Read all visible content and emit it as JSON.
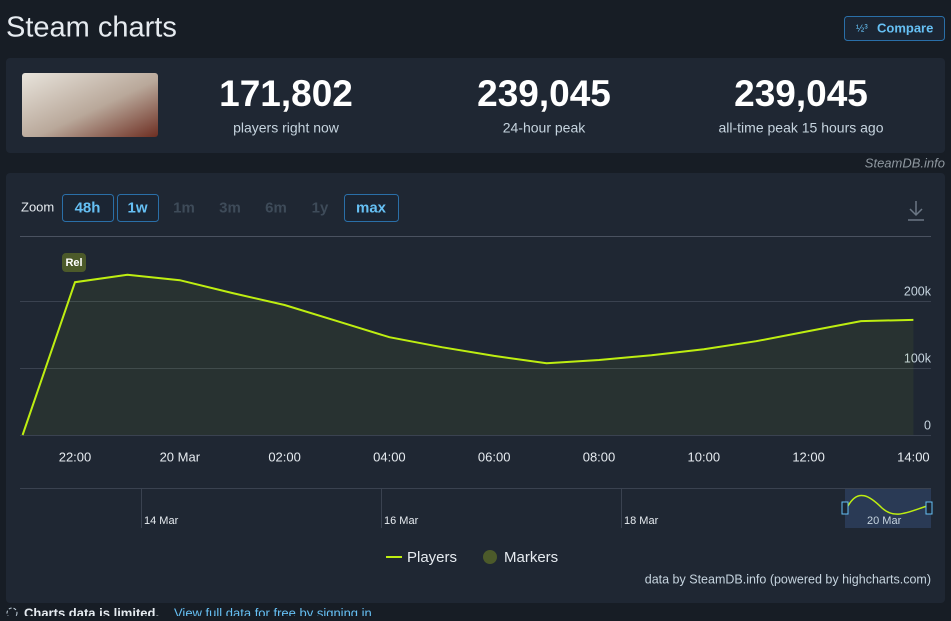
{
  "header": {
    "title": "Steam charts",
    "compare": "Compare"
  },
  "stats": [
    {
      "value": "171,802",
      "label": "players right now"
    },
    {
      "value": "239,045",
      "label": "24-hour peak"
    },
    {
      "value": "239,045",
      "label": "all-time peak 15 hours ago"
    }
  ],
  "source": "SteamDB.info",
  "zoom": {
    "label": "Zoom",
    "options": [
      "48h",
      "1w",
      "1m",
      "3m",
      "6m",
      "1y",
      "max"
    ]
  },
  "chart_data": {
    "type": "line",
    "categories": [
      null,
      "22:00",
      null,
      "20 Mar",
      null,
      "02:00",
      null,
      "04:00",
      null,
      "06:00",
      null,
      "08:00",
      null,
      "10:00",
      null,
      "12:00",
      null,
      "14:00"
    ],
    "series": [
      {
        "name": "Players",
        "color": "#beee11",
        "values": [
          0,
          228000,
          239045,
          231000,
          212000,
          194000,
          170000,
          146000,
          131000,
          118000,
          107000,
          112000,
          119000,
          128000,
          140000,
          155000,
          170000,
          171802
        ]
      }
    ],
    "ylim": [
      0,
      300000
    ],
    "yticks": [
      0,
      {
        "value": 100000,
        "label": "100k"
      },
      {
        "value": 200000,
        "label": "200k"
      }
    ],
    "grid": true,
    "annotation": "Rel",
    "markers_label": "Markers",
    "navigator_labels": [
      "14 Mar",
      "16 Mar",
      "18 Mar",
      "20 Mar"
    ],
    "credits": "data by SteamDB.info (powered by highcharts.com)"
  },
  "footer": {
    "notice": "Charts data is limited.",
    "link": "View full data for free by signing in."
  }
}
